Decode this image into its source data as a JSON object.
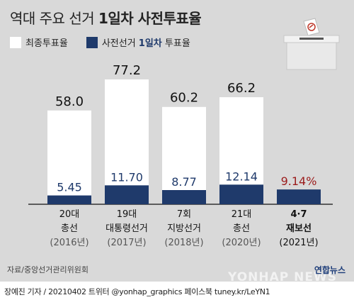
{
  "title_plain": "역대 주요 선거 ",
  "title_bold": "1일차 사전투표율",
  "legend": {
    "final_label": "최종투표율",
    "early_prefix": "사전선거 ",
    "early_highlight": "1일차",
    "early_suffix": " 투표율"
  },
  "colors": {
    "final": "#ffffff",
    "early": "#1f3a6b",
    "highlight": "#9b1c1c",
    "background": "#d9d9d9"
  },
  "chart_data": {
    "type": "bar",
    "title": "역대 주요 선거 1일차 사전투표율",
    "categories": [
      "20대 총선",
      "19대 대통령선거",
      "7회 지방선거",
      "21대 총선",
      "4·7 재보선"
    ],
    "category_lines": [
      [
        "20대",
        "총선",
        "(2016년)"
      ],
      [
        "19대",
        "대통령선거",
        "(2017년)"
      ],
      [
        "7회",
        "지방선거",
        "(2018년)"
      ],
      [
        "21대",
        "총선",
        "(2020년)"
      ],
      [
        "4·7",
        "재보선",
        "(2021년)"
      ]
    ],
    "series": [
      {
        "name": "최종투표율",
        "values": [
          58.0,
          77.2,
          60.2,
          66.2,
          null
        ],
        "labels": [
          "58.0",
          "77.2",
          "60.2",
          "66.2",
          ""
        ]
      },
      {
        "name": "사전선거 1일차 투표율",
        "values": [
          5.45,
          11.7,
          8.77,
          12.14,
          9.14
        ],
        "labels": [
          "5.45",
          "11.70",
          "8.77",
          "12.14",
          "9.14%"
        ]
      }
    ],
    "ylim": [
      0,
      100
    ]
  },
  "source": "자료/중앙선거관리위원회",
  "logo": "연합뉴스",
  "watermark": "YONHAP NEWS",
  "footer": "장예진 기자 / 20210402 트위터 @yonhap_graphics  페이스북 tuney.kr/LeYN1"
}
